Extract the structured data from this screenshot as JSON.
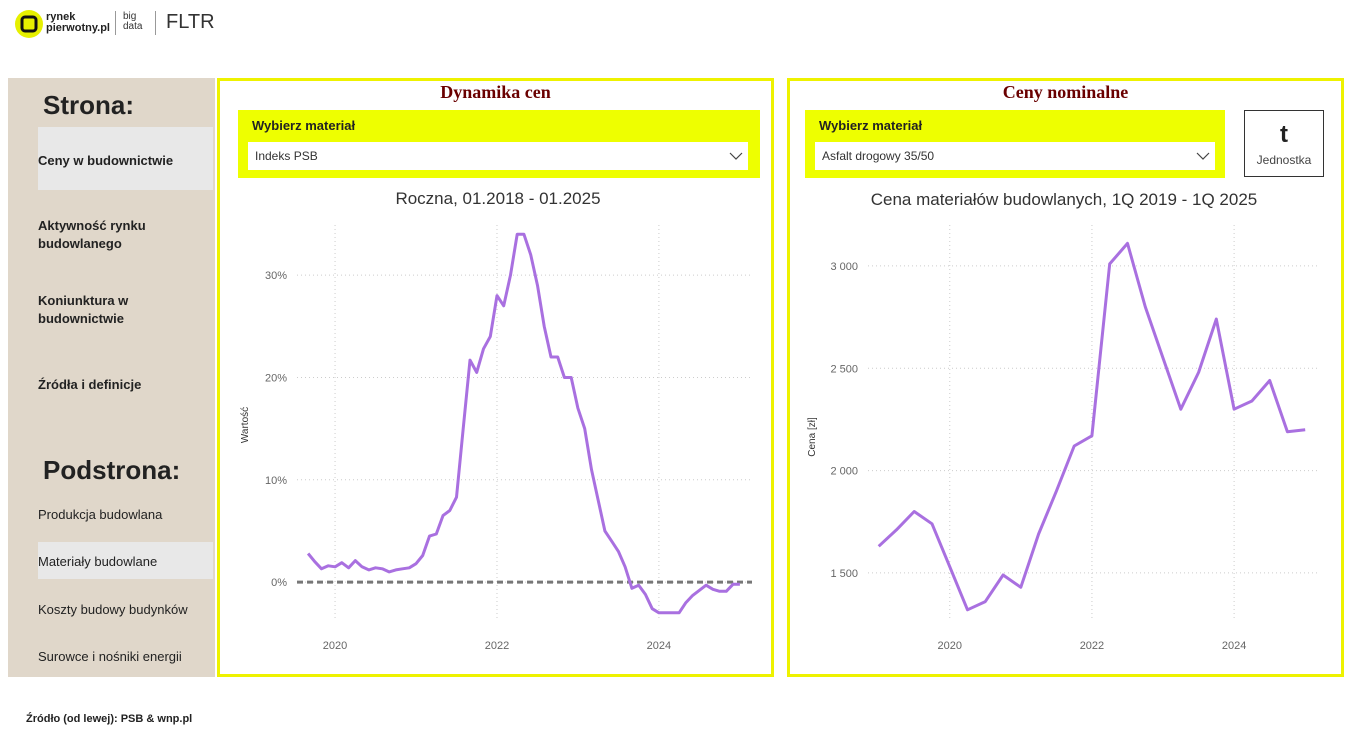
{
  "header": {
    "logo_line_1": "rynek",
    "logo_line_2": "pierwotny.pl",
    "logo_sub_1": "big",
    "logo_sub_2": "data",
    "tag": "FLTR"
  },
  "sidebar": {
    "heading": "Strona:",
    "pages": [
      "Ceny w budownictwie",
      "Aktywność rynku budowlanego",
      "Koniunktura w budownictwie",
      "Źródła i definicje"
    ],
    "subheading": "Podstrona:",
    "subpages": [
      "Produkcja budowlana",
      "Materiały budowlane",
      "Koszty budowy budynków",
      "Surowce i nośniki energii"
    ]
  },
  "panels": [
    {
      "title": "Dynamika cen",
      "selector_label": "Wybierz materiał",
      "selector_value": "Indeks PSB"
    },
    {
      "title": "Ceny nominalne",
      "selector_label": "Wybierz materiał",
      "selector_value": "Asfalt drogowy 35/50"
    }
  ],
  "unit": {
    "value": "t",
    "label": "Jednostka"
  },
  "chart_data": [
    {
      "type": "line",
      "title": "Roczna, 01.2018 - 01.2025",
      "ylabel": "Wartość",
      "x": [
        2019.667,
        2019.75,
        2019.833,
        2019.917,
        2020,
        2020.083,
        2020.167,
        2020.25,
        2020.333,
        2020.417,
        2020.5,
        2020.583,
        2020.667,
        2020.75,
        2020.833,
        2020.917,
        2021,
        2021.083,
        2021.167,
        2021.25,
        2021.333,
        2021.417,
        2021.5,
        2021.583,
        2021.667,
        2021.75,
        2021.833,
        2021.917,
        2022,
        2022.083,
        2022.167,
        2022.25,
        2022.333,
        2022.417,
        2022.5,
        2022.583,
        2022.667,
        2022.75,
        2022.833,
        2022.917,
        2023,
        2023.083,
        2023.167,
        2023.25,
        2023.333,
        2023.417,
        2023.5,
        2023.583,
        2023.667,
        2023.75,
        2023.833,
        2023.917,
        2024,
        2024.083,
        2024.167,
        2024.25,
        2024.333,
        2024.417,
        2024.5,
        2024.583,
        2024.667,
        2024.75,
        2024.833,
        2024.917,
        2025
      ],
      "series": [
        {
          "color": "#a970e0",
          "values": [
            2.8,
            2.0,
            1.3,
            1.6,
            1.5,
            1.9,
            1.4,
            2.1,
            1.5,
            1.2,
            1.4,
            1.3,
            1.0,
            1.2,
            1.3,
            1.4,
            1.8,
            2.6,
            4.5,
            4.7,
            6.5,
            7.0,
            8.3,
            15.0,
            21.7,
            20.5,
            22.8,
            24.0,
            28.0,
            27.0,
            30.0,
            34.0,
            34.0,
            32.0,
            29.0,
            25.0,
            22.0,
            22.0,
            20.0,
            20.0,
            17.0,
            15.0,
            11.0,
            8.0,
            5.0,
            4.0,
            3.0,
            1.5,
            -0.6,
            -0.3,
            -1.2,
            -2.6,
            -3.0,
            -3.0,
            -3.0,
            -3.0,
            -2.0,
            -1.3,
            -0.8,
            -0.3,
            -0.7,
            -0.9,
            -0.9,
            -0.2,
            -0.2
          ]
        }
      ],
      "hline": 0,
      "xlim": [
        2019.53,
        2025.15
      ],
      "xticks": [
        2020,
        2022,
        2024
      ],
      "ylim": [
        -3.7,
        34.9
      ],
      "yticks": [
        {
          "value": 0,
          "label": "0%"
        },
        {
          "value": 10,
          "label": "10%"
        },
        {
          "value": 20,
          "label": "20%"
        },
        {
          "value": 30,
          "label": "30%"
        }
      ],
      "grid": true
    },
    {
      "type": "line",
      "title": "Cena materiałów budowlanych, 1Q 2019 - 1Q 2025",
      "ylabel": "Cena [zł]",
      "x": [
        2019,
        2019.25,
        2019.5,
        2019.75,
        2020,
        2020.25,
        2020.5,
        2020.75,
        2021,
        2021.25,
        2021.5,
        2021.75,
        2022,
        2022.25,
        2022.5,
        2022.75,
        2023,
        2023.25,
        2023.5,
        2023.75,
        2024,
        2024.25,
        2024.5,
        2024.75,
        2025
      ],
      "series": [
        {
          "color": "#a970e0",
          "values": [
            1630,
            1710,
            1800,
            1740,
            1530,
            1320,
            1360,
            1490,
            1430,
            1690,
            1900,
            2120,
            2170,
            3010,
            3110,
            2800,
            2550,
            2300,
            2480,
            2740,
            2300,
            2340,
            2440,
            2190,
            2200
          ]
        }
      ],
      "xlim": [
        2018.85,
        2025.18
      ],
      "xticks": [
        2020,
        2022,
        2024
      ],
      "ylim": [
        1270,
        3200
      ],
      "yticks": [
        {
          "value": 1500,
          "label": "1 500"
        },
        {
          "value": 2000,
          "label": "2 000"
        },
        {
          "value": 2500,
          "label": "2 500"
        },
        {
          "value": 3000,
          "label": "3 000"
        }
      ],
      "grid": true
    }
  ],
  "footer": "Źródło (od lewej): PSB & wnp.pl"
}
